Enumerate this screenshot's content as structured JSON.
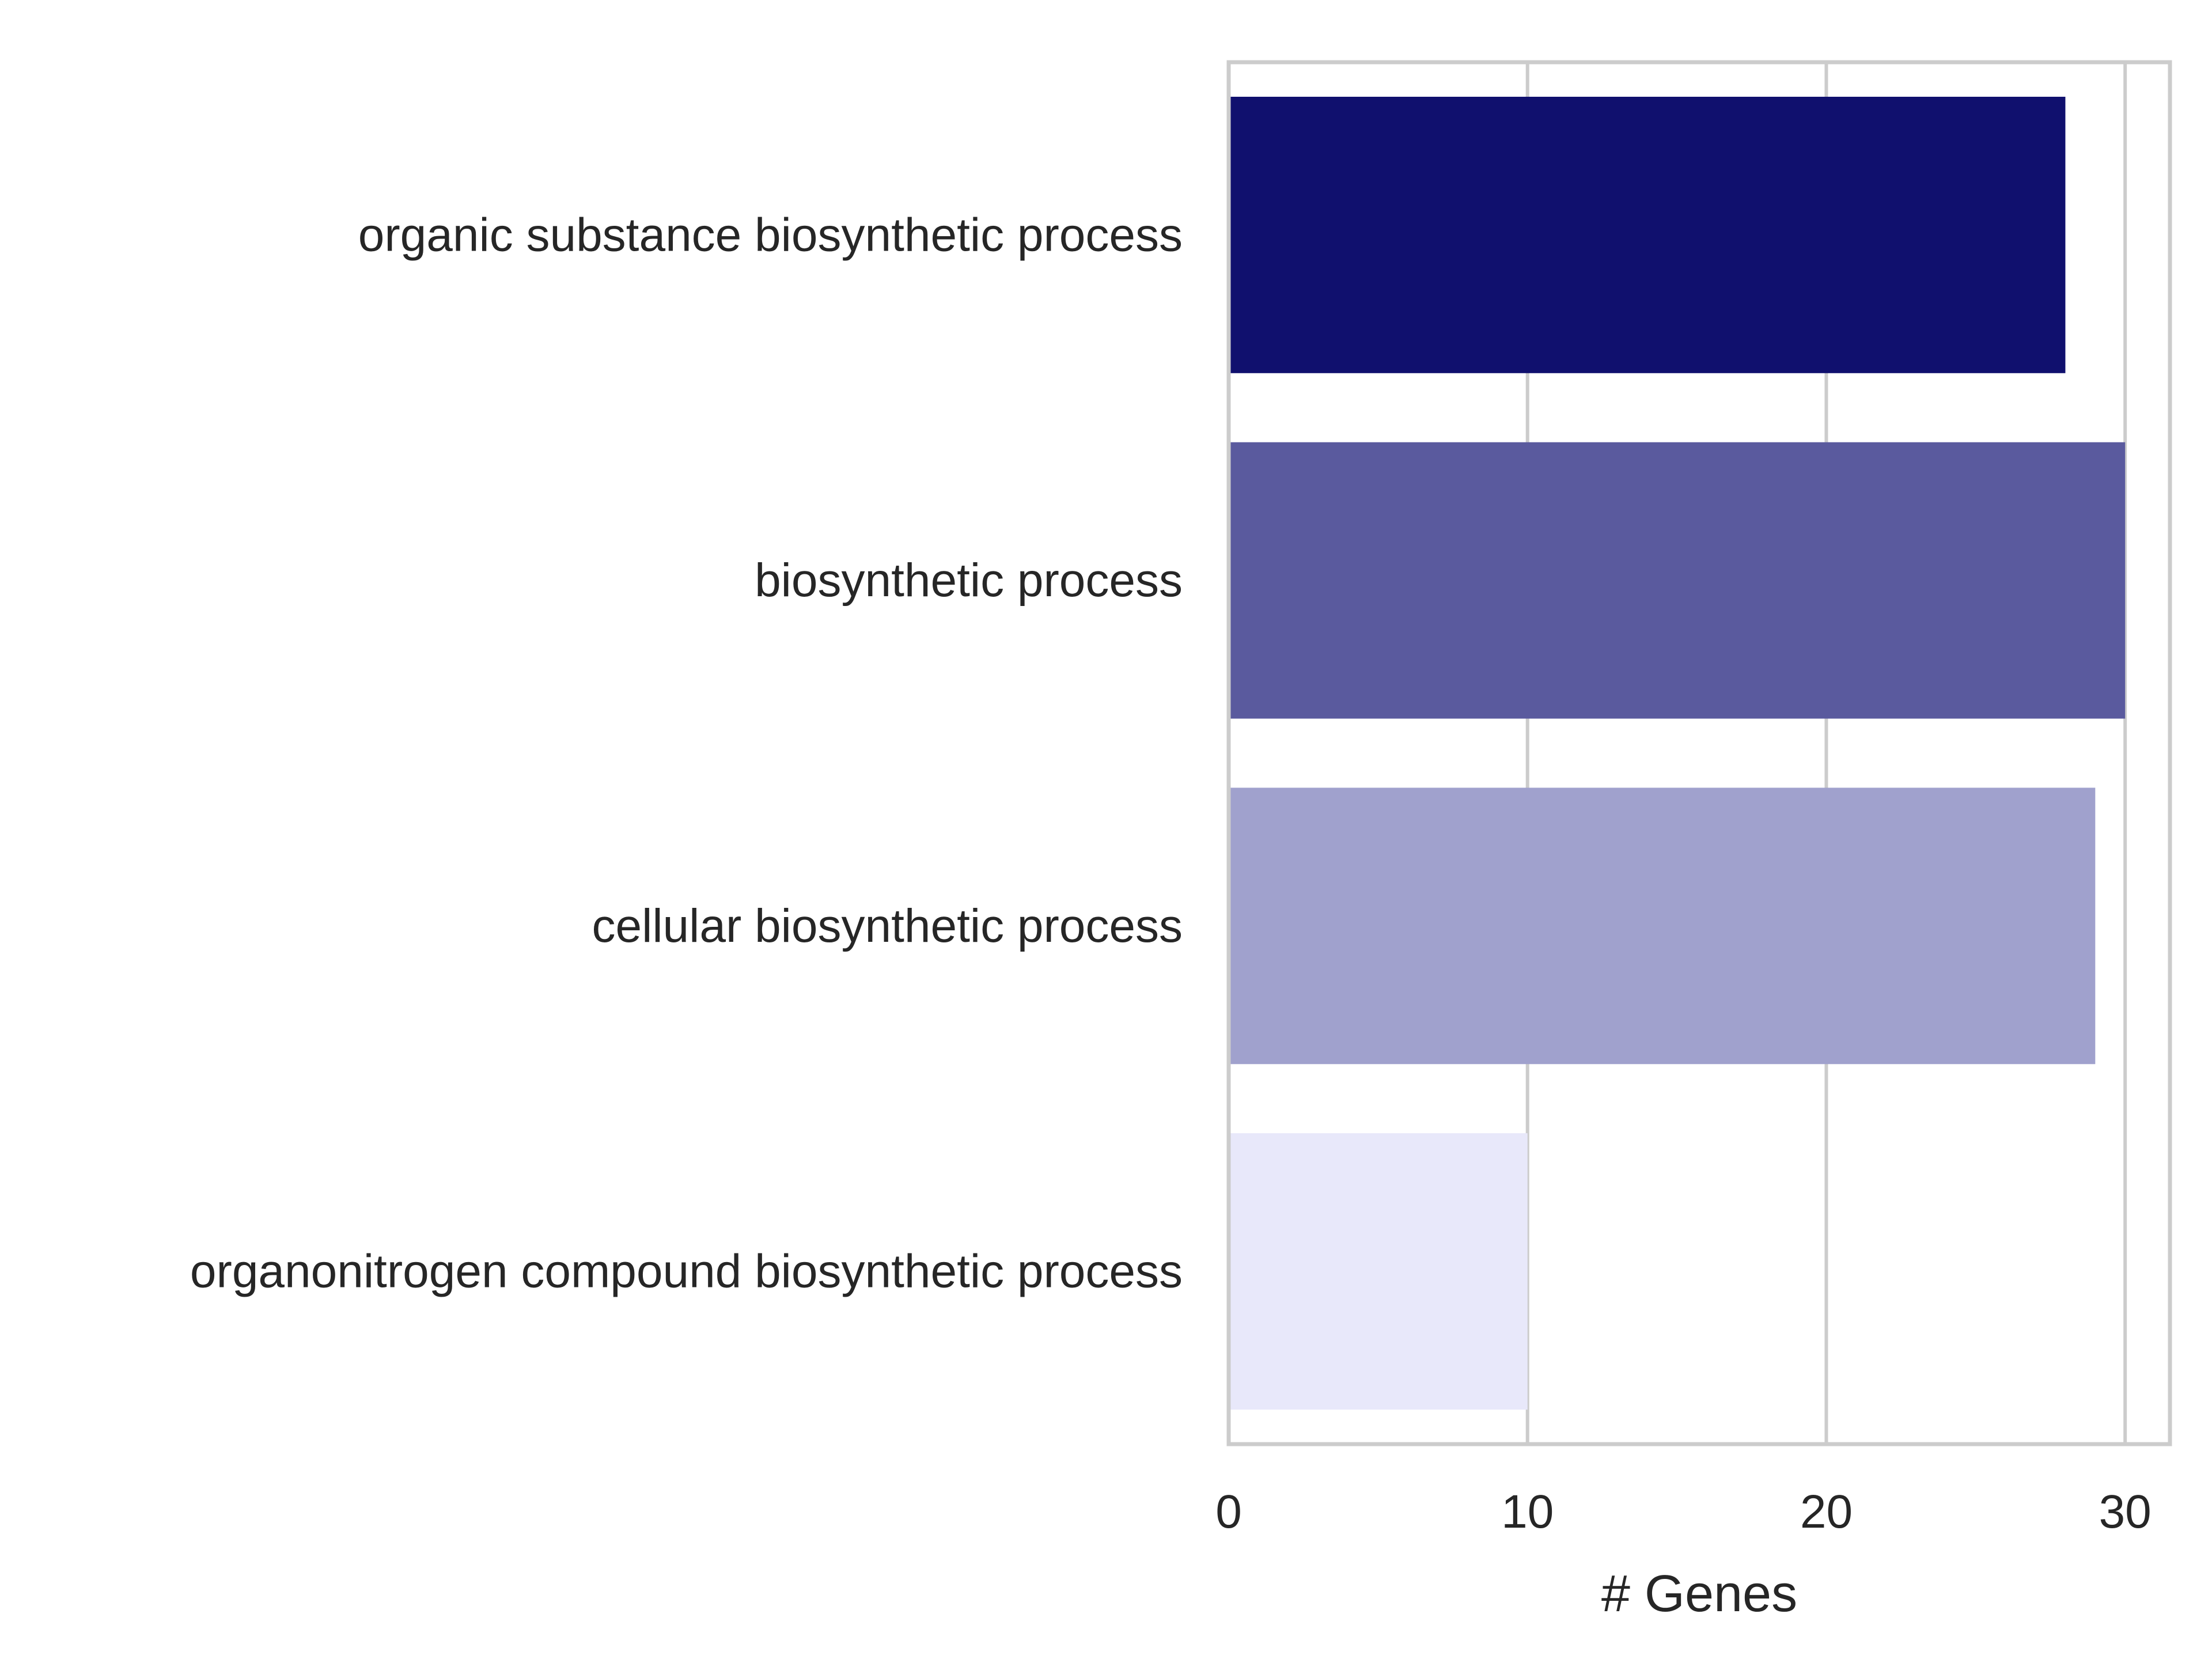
{
  "chart_data": {
    "type": "bar",
    "orientation": "horizontal",
    "categories": [
      "organic substance biosynthetic process",
      "biosynthetic process",
      "cellular biosynthetic process",
      "organonitrogen compound biosynthetic process"
    ],
    "values": [
      28,
      30,
      29,
      10
    ],
    "colors": [
      "#10106e",
      "#5a5a9e",
      "#a0a1cd",
      "#e8e8fa"
    ],
    "xlabel": "# Genes",
    "ylabel": "",
    "title": "",
    "xlim": [
      0,
      31.5
    ],
    "xticks": [
      0,
      10,
      20,
      30
    ],
    "grid": "vertical",
    "frame_color": "#cccccc",
    "grid_color": "#cccccc"
  }
}
